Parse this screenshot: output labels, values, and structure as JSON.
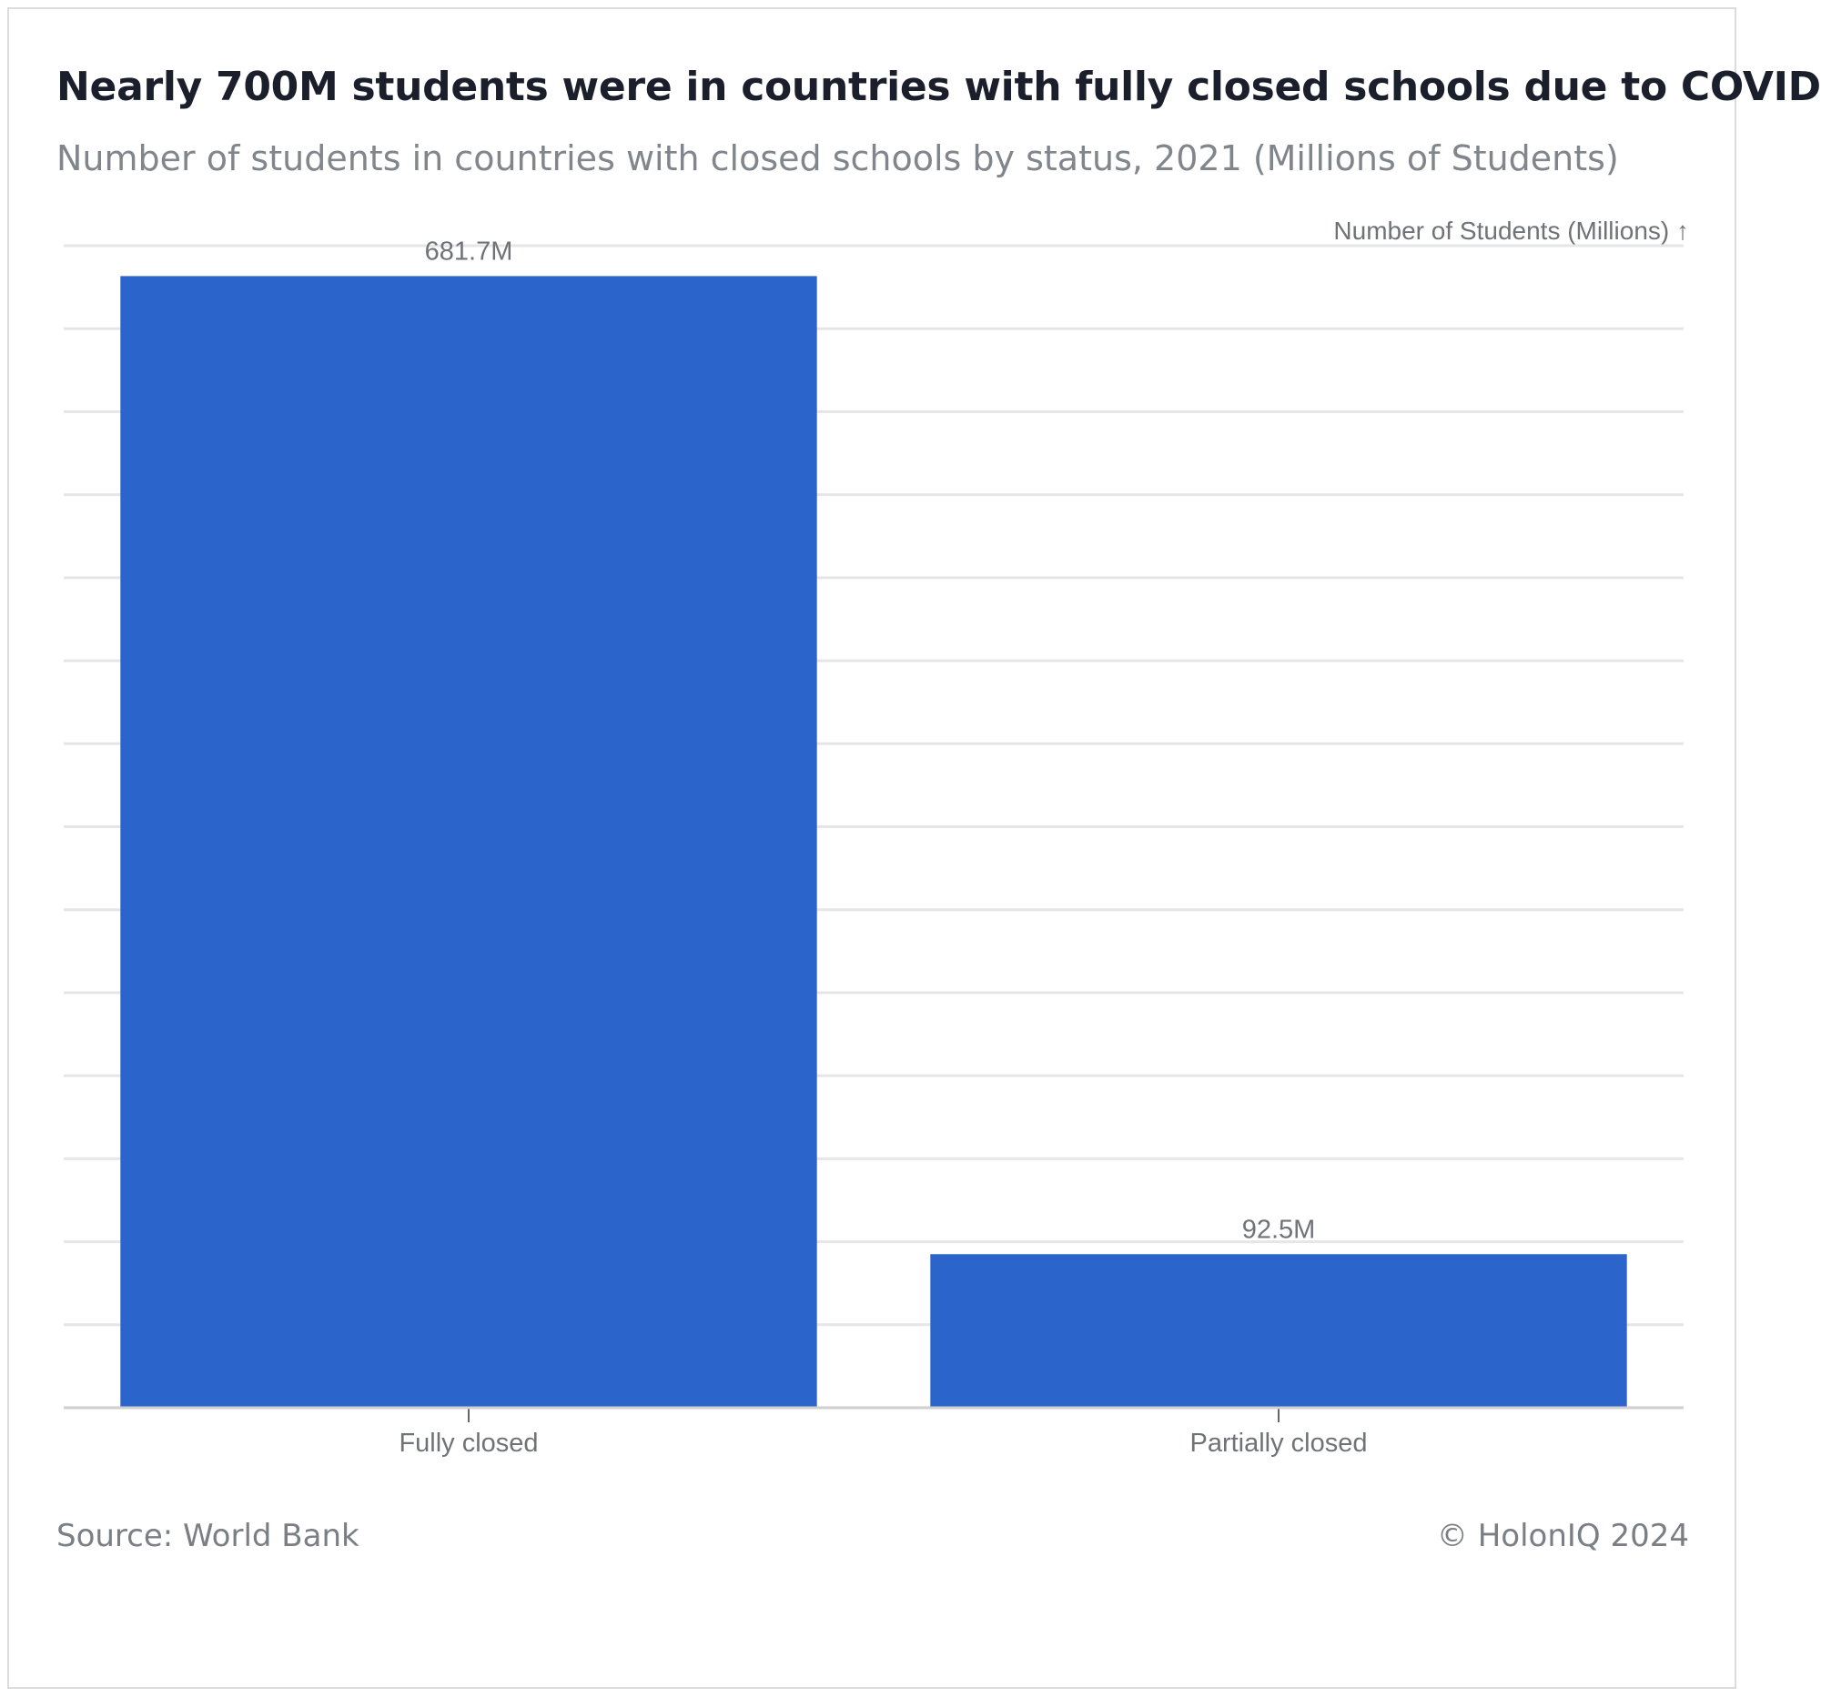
{
  "header": {
    "title": "Nearly 700M students were in countries with fully closed schools due to COVID",
    "subtitle": "Number of students in countries with closed schools by status, 2021 (Millions of Students)"
  },
  "footer": {
    "source": "Source: World Bank",
    "copyright": "© HolonIQ 2024"
  },
  "colors": {
    "bar": "#2b65cc",
    "grid": "#e6e6e6",
    "axis": "#cfcfcf",
    "label": "#6f7378"
  },
  "chart_data": {
    "type": "bar",
    "title": "Nearly 700M students were in countries with fully closed schools due to COVID",
    "subtitle": "Number of students in countries with closed schools by status, 2021 (Millions of Students)",
    "xlabel": "",
    "ylabel": "Number of Students (Millions) ↑",
    "categories": [
      "Fully closed",
      "Partially closed"
    ],
    "values": [
      681.7,
      92.5
    ],
    "data_labels": [
      "681.7M",
      "92.5M"
    ],
    "ylim": [
      0,
      700
    ],
    "grid_step": 50,
    "grid": true,
    "y_tick_labels_visible": false
  }
}
